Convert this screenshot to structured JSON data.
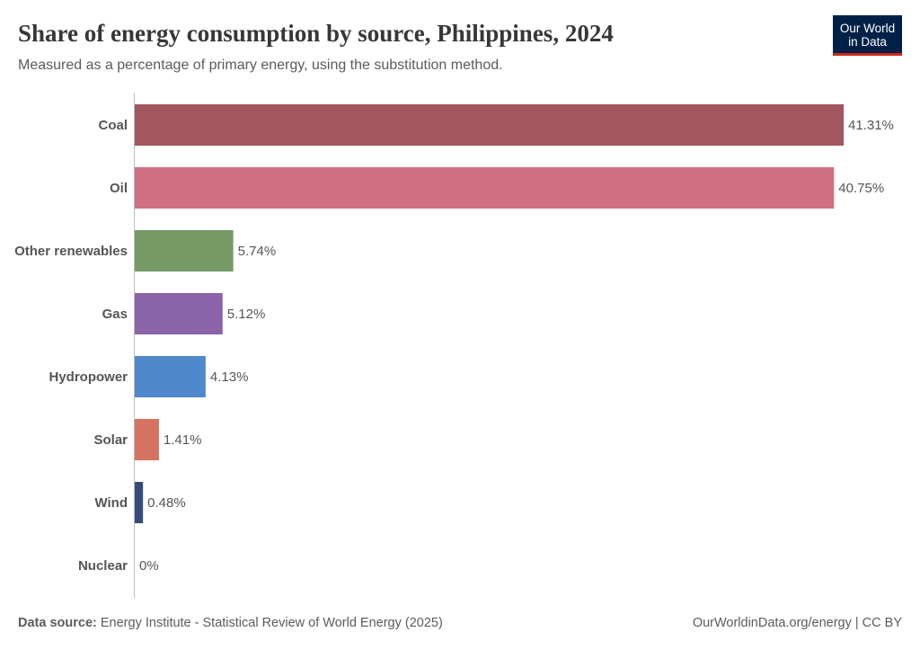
{
  "title": "Share of energy consumption by source, Philippines, 2024",
  "subtitle": "Measured as a percentage of primary energy, using the substitution method.",
  "logo": {
    "line1": "Our World",
    "line2": "in Data"
  },
  "footer": {
    "source_label": "Data source:",
    "source": "Energy Institute - Statistical Review of World Energy (2025)",
    "right": "OurWorldinData.org/energy | CC BY"
  },
  "chart_data": {
    "type": "bar",
    "orientation": "horizontal",
    "categories": [
      "Coal",
      "Oil",
      "Other renewables",
      "Gas",
      "Hydropower",
      "Solar",
      "Wind",
      "Nuclear"
    ],
    "values": [
      41.31,
      40.75,
      5.74,
      5.12,
      4.13,
      1.41,
      0.48,
      0
    ],
    "labels": [
      "41.31%",
      "40.75%",
      "5.74%",
      "5.12%",
      "4.13%",
      "1.41%",
      "0.48%",
      "0%"
    ],
    "colors": [
      "#a2575e",
      "#cf7080",
      "#779966",
      "#8b63a8",
      "#5088cc",
      "#d57360",
      "#374c75",
      "#999999"
    ],
    "unit": "%",
    "xlim": [
      0,
      41.31
    ],
    "grid": false
  }
}
